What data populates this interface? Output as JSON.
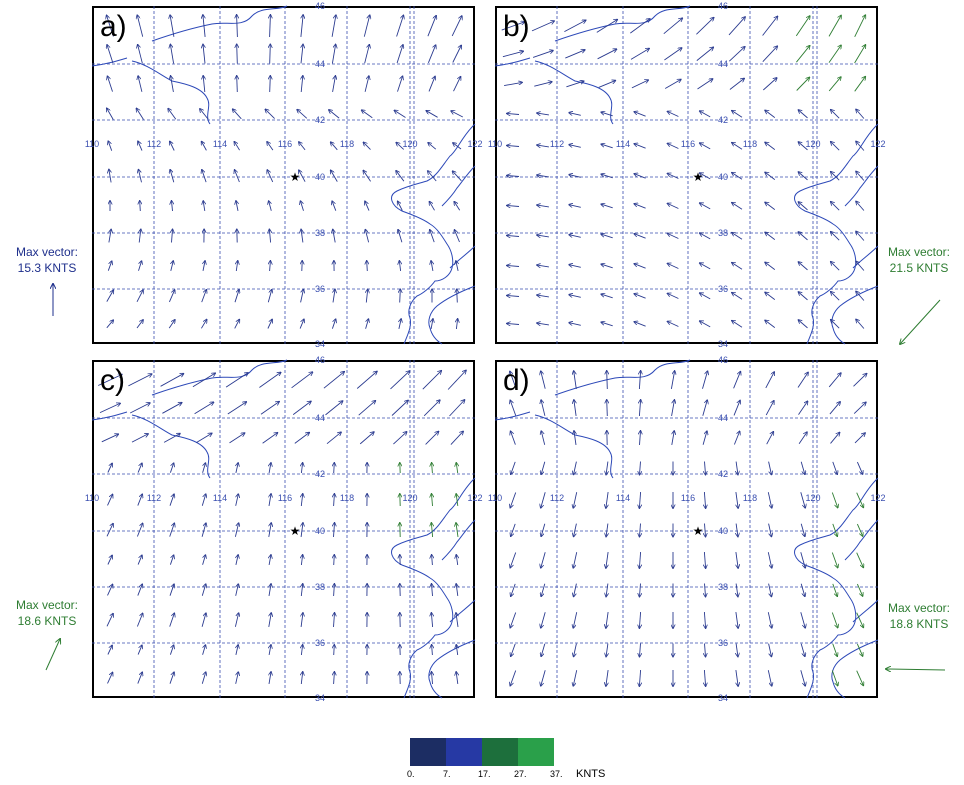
{
  "panels": [
    {
      "id": "a",
      "label": "a)"
    },
    {
      "id": "b",
      "label": "b)"
    },
    {
      "id": "c",
      "label": "c)"
    },
    {
      "id": "d",
      "label": "d)"
    }
  ],
  "lon_labels": [
    "110",
    "112",
    "114",
    "116",
    "118",
    "120",
    "122"
  ],
  "lat_labels": [
    "46",
    "44",
    "42",
    "40",
    "38",
    "36",
    "34"
  ],
  "star_marker": "★",
  "max_vectors": [
    {
      "panel": "a",
      "title": "Max vector:",
      "value": "15.3 KNTS",
      "color": "#1e2f8c",
      "arrow_dir_deg": 90
    },
    {
      "panel": "b",
      "title": "Max vector:",
      "value": "21.5 KNTS",
      "color": "#2e7d32",
      "arrow_dir_deg": 225
    },
    {
      "panel": "c",
      "title": "Max vector:",
      "value": "18.6 KNTS",
      "color": "#2e7d32",
      "arrow_dir_deg": 60
    },
    {
      "panel": "d",
      "title": "Max vector:",
      "value": "18.8 KNTS",
      "color": "#2e7d32",
      "arrow_dir_deg": 180
    }
  ],
  "colorbar": {
    "ticks": [
      "0.",
      "7.",
      "17.",
      "27.",
      "37."
    ],
    "unit": "KNTS",
    "colors": [
      "#1c2d63",
      "#2639a4",
      "#1d6f3c",
      "#2aa04a"
    ]
  },
  "colors": {
    "grid": "#3a4fb0",
    "coast": "#2d49b8",
    "vector_weak": "#2a3a8f",
    "vector_strong": "#2e7d32"
  }
}
